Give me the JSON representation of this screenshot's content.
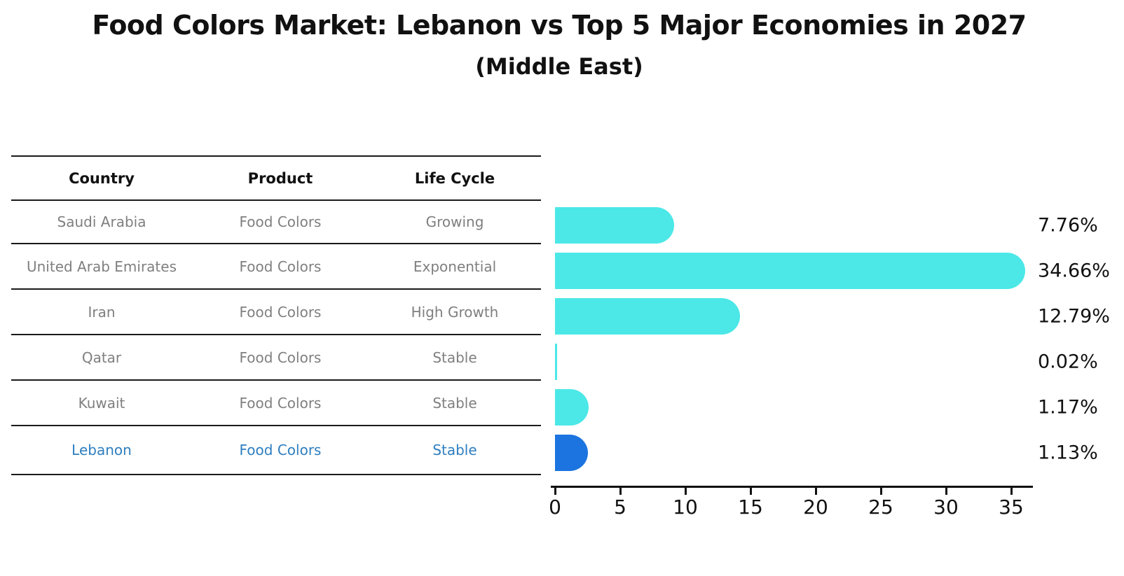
{
  "title": "Food Colors Market: Lebanon vs Top 5 Major Economies in 2027",
  "subtitle": "(Middle East)",
  "table": {
    "headers": [
      "Country",
      "Product",
      "Life Cycle"
    ],
    "rows": [
      {
        "country": "Saudi Arabia",
        "product": "Food Colors",
        "life_cycle": "Growing",
        "highlighted": false
      },
      {
        "country": "United Arab Emirates",
        "product": "Food Colors",
        "life_cycle": "Exponential",
        "highlighted": false
      },
      {
        "country": "Iran",
        "product": "Food Colors",
        "life_cycle": "High Growth",
        "highlighted": false
      },
      {
        "country": "Qatar",
        "product": "Food Colors",
        "life_cycle": "Stable",
        "highlighted": false
      },
      {
        "country": "Kuwait",
        "product": "Food Colors",
        "life_cycle": "Stable",
        "highlighted": false
      },
      {
        "country": "Lebanon",
        "product": "Food Colors",
        "life_cycle": "Stable",
        "highlighted": true
      }
    ]
  },
  "chart_data": {
    "type": "bar",
    "orientation": "horizontal",
    "title": "Food Colors Market: Lebanon vs Top 5 Major Economies in 2027 (Middle East)",
    "categories": [
      "Saudi Arabia",
      "United Arab Emirates",
      "Iran",
      "Qatar",
      "Kuwait",
      "Lebanon"
    ],
    "values": [
      7.76,
      34.66,
      12.79,
      0.02,
      1.17,
      1.13
    ],
    "value_labels": [
      "7.76%",
      "34.66%",
      "12.79%",
      "0.02%",
      "1.17%",
      "1.13%"
    ],
    "xlabel": "",
    "ylabel": "",
    "xlim": [
      0,
      35
    ],
    "xticks": [
      0,
      5,
      10,
      15,
      20,
      25,
      30,
      35
    ],
    "grid": false,
    "legend": false,
    "highlight_index": 5,
    "bar_color_default": "#4BE8E7",
    "bar_color_highlight": "#1C74E0"
  },
  "colors": {
    "background": "#FFFFFF",
    "text_primary": "#111111",
    "text_muted": "#7F7F7F",
    "highlight_text": "#2E7EBF",
    "bar_cyan": "#4BE8E7",
    "bar_blue": "#1C74E0",
    "line": "#1A1A1A"
  }
}
